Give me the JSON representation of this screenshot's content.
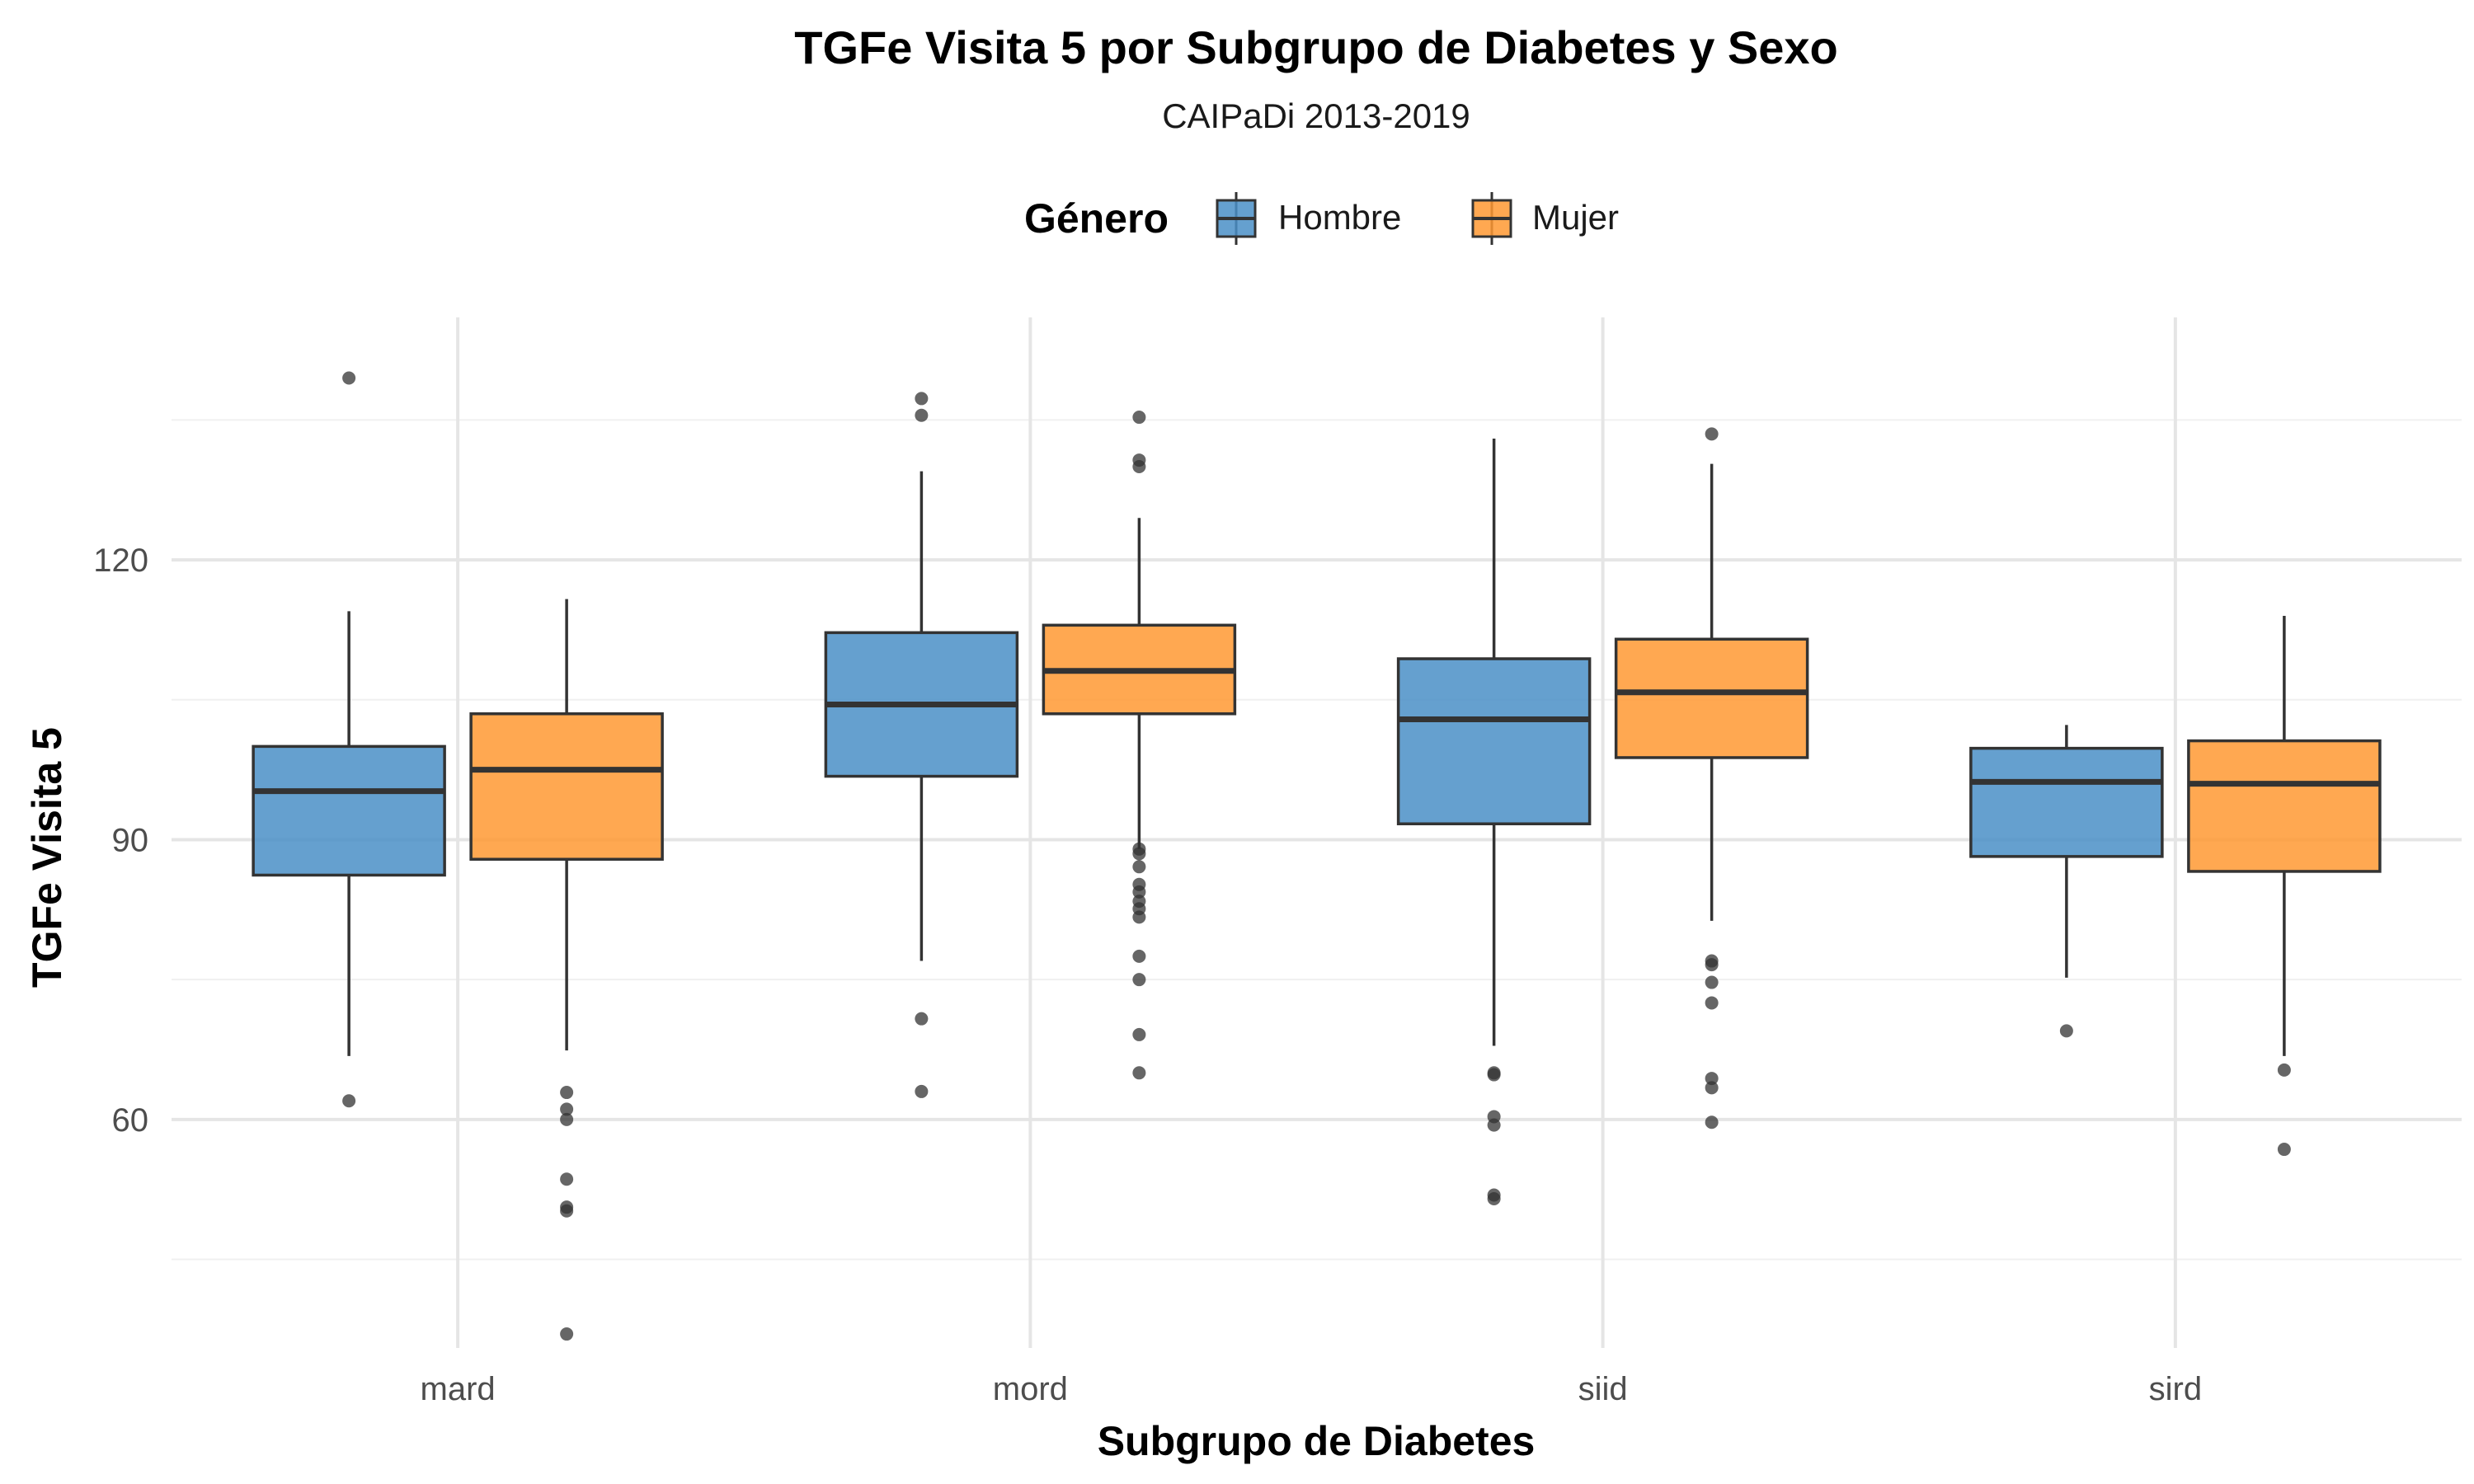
{
  "chart_data": {
    "type": "boxplot",
    "title": "TGFe Visita 5 por Subgrupo de Diabetes y Sexo",
    "subtitle": "CAIPaDi 2013-2019",
    "xlabel": "Subgrupo de Diabetes",
    "ylabel": "TGFe Visita 5",
    "ylim": [
      35.5,
      146
    ],
    "yticks": [
      60,
      90,
      120
    ],
    "grid": true,
    "legend": {
      "title": "Género",
      "placement": "top"
    },
    "categories": [
      "mard",
      "mord",
      "siid",
      "sird"
    ],
    "series": [
      {
        "name": "Hombre",
        "color": "#4a8fc7",
        "boxes": [
          {
            "whisker_low": 66.8,
            "q1": 86.2,
            "median": 95.2,
            "q3": 100.0,
            "whisker_high": 114.5,
            "outliers": [
              62.0,
              139.5
            ]
          },
          {
            "whisker_low": 77.0,
            "q1": 96.8,
            "median": 104.5,
            "q3": 112.2,
            "whisker_high": 129.5,
            "outliers": [
              63.0,
              70.8,
              135.5,
              137.3
            ]
          },
          {
            "whisker_low": 67.9,
            "q1": 91.7,
            "median": 102.9,
            "q3": 109.4,
            "whisker_high": 133.0,
            "outliers": [
              51.5,
              51.9,
              59.4,
              60.3,
              64.8,
              65.0
            ]
          },
          {
            "whisker_low": 75.2,
            "q1": 88.2,
            "median": 96.2,
            "q3": 99.8,
            "whisker_high": 102.3,
            "outliers": [
              69.5
            ]
          }
        ]
      },
      {
        "name": "Mujer",
        "color": "#ff9933",
        "boxes": [
          {
            "whisker_low": 67.4,
            "q1": 87.9,
            "median": 97.5,
            "q3": 103.5,
            "whisker_high": 115.8,
            "outliers": [
              37.0,
              50.2,
              50.6,
              53.6,
              60.0,
              61.1,
              62.9
            ]
          },
          {
            "whisker_low": 89.0,
            "q1": 103.5,
            "median": 108.1,
            "q3": 113.0,
            "whisker_high": 124.5,
            "outliers": [
              65.0,
              69.1,
              75.0,
              77.5,
              81.7,
              82.6,
              83.4,
              84.4,
              85.2,
              87.1,
              88.5,
              89.0,
              130.0,
              130.7,
              135.3
            ]
          },
          {
            "whisker_low": 81.3,
            "q1": 98.8,
            "median": 105.8,
            "q3": 111.5,
            "whisker_high": 130.3,
            "outliers": [
              59.7,
              63.4,
              64.4,
              72.5,
              74.7,
              76.6,
              77.0,
              133.5
            ]
          },
          {
            "whisker_low": 66.8,
            "q1": 86.6,
            "median": 96.0,
            "q3": 100.6,
            "whisker_high": 114.0,
            "outliers": [
              56.8,
              65.3
            ]
          }
        ]
      }
    ]
  }
}
